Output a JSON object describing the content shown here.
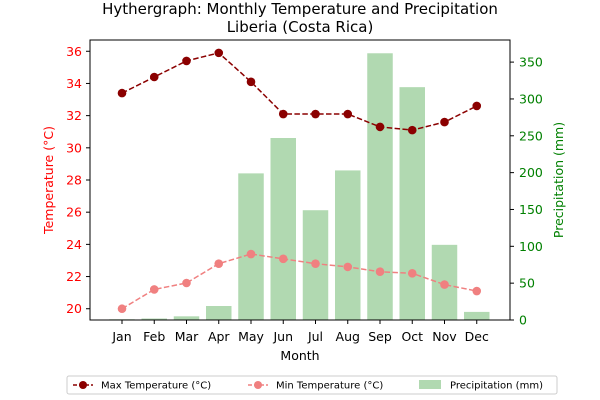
{
  "chart_data": {
    "type": "bar+line",
    "title_line1": "Hythergraph: Monthly Temperature and Precipitation",
    "title_line2": "Liberia (Costa Rica)",
    "xlabel": "Month",
    "ylabel_left": "Temperature (°C)",
    "ylabel_right": "Precipitation (mm)",
    "categories": [
      "Jan",
      "Feb",
      "Mar",
      "Apr",
      "May",
      "Jun",
      "Jul",
      "Aug",
      "Sep",
      "Oct",
      "Nov",
      "Dec"
    ],
    "ylim_left": [
      19.3,
      36.7
    ],
    "ylim_right": [
      0,
      380
    ],
    "yticks_left": [
      20,
      22,
      24,
      26,
      28,
      30,
      32,
      34,
      36
    ],
    "yticks_right": [
      0,
      50,
      100,
      150,
      200,
      250,
      300,
      350
    ],
    "grid": false,
    "legend_position": "bottom-center",
    "series": [
      {
        "name": "Max Temperature (°C)",
        "kind": "line",
        "axis": "left",
        "color": "#8b0000",
        "values": [
          33.4,
          34.4,
          35.4,
          35.9,
          34.1,
          32.1,
          32.1,
          32.1,
          31.3,
          31.1,
          31.6,
          32.6
        ]
      },
      {
        "name": "Min Temperature (°C)",
        "kind": "line",
        "axis": "left",
        "color": "#f08080",
        "values": [
          20.0,
          21.2,
          21.6,
          22.8,
          23.4,
          23.1,
          22.8,
          22.6,
          22.3,
          22.2,
          21.5,
          21.1
        ]
      },
      {
        "name": "Precipitation (mm)",
        "kind": "bar",
        "axis": "right",
        "color": "#b1d9b1",
        "values": [
          1,
          2,
          5,
          19,
          199,
          247,
          149,
          203,
          362,
          316,
          102,
          11
        ]
      }
    ],
    "colors": {
      "left_axis": "#ff0000",
      "right_axis": "#008000",
      "text": "#000000"
    }
  }
}
